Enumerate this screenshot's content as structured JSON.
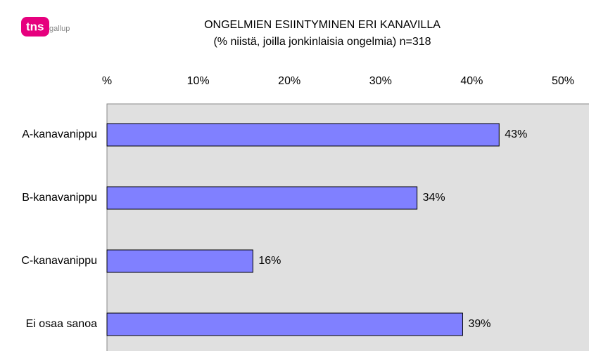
{
  "logo": {
    "brand": "tns",
    "sub": "gallup"
  },
  "chart_data": {
    "type": "bar",
    "orientation": "horizontal",
    "title": "ONGELMIEN ESIINTYMINEN ERI KANAVILLA",
    "subtitle": "(% niistä, joilla jonkinlaisia ongelmia) n=318",
    "categories": [
      "A-kanavanippu",
      "B-kanavanippu",
      "C-kanavanippu",
      "Ei osaa sanoa"
    ],
    "values": [
      43,
      34,
      16,
      39
    ],
    "value_labels": [
      "43%",
      "34%",
      "16%",
      "39%"
    ],
    "color": "#8080ff",
    "xlim": [
      0,
      50
    ],
    "xticks": [
      {
        "value": 0,
        "label": "%"
      },
      {
        "value": 10,
        "label": "10%"
      },
      {
        "value": 20,
        "label": "20%"
      },
      {
        "value": 30,
        "label": "30%"
      },
      {
        "value": 40,
        "label": "40%"
      },
      {
        "value": 50,
        "label": "50%"
      }
    ]
  }
}
